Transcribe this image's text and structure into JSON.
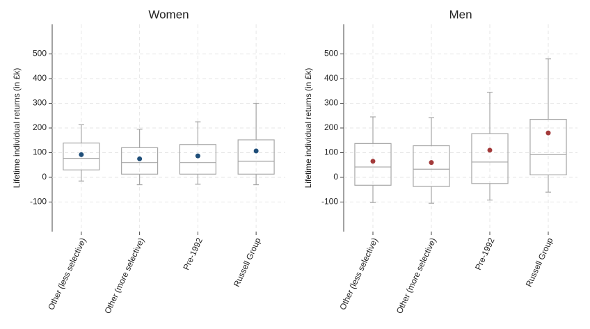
{
  "chart_data": [
    {
      "type": "box",
      "title": "Women",
      "y_label": "Lifetime individual returns (in £k)",
      "categories": [
        "Other (less selective)",
        "Other (more selective)",
        "Pre-1992",
        "Russell Group"
      ],
      "low": [
        -15,
        -30,
        -28,
        -30
      ],
      "q1": [
        30,
        13,
        13,
        13
      ],
      "median": [
        77,
        60,
        60,
        65
      ],
      "q3": [
        139,
        120,
        133,
        152
      ],
      "high": [
        213,
        195,
        225,
        300
      ],
      "mean": [
        92,
        75,
        87,
        107
      ],
      "mean_color": "#1f4e79",
      "box_color": "#a6a6a6",
      "ylim": [
        -220,
        620
      ],
      "yticks": [
        -100,
        0,
        100,
        200,
        300,
        400,
        500
      ],
      "grid": true
    },
    {
      "type": "box",
      "title": "Men",
      "y_label": "Lifetime individual returns (in £k)",
      "categories": [
        "Other (less selective)",
        "Other (more selective)",
        "Pre-1992",
        "Russell Group"
      ],
      "low": [
        -102,
        -105,
        -92,
        -60
      ],
      "q1": [
        -32,
        -37,
        -25,
        10
      ],
      "median": [
        42,
        33,
        62,
        92
      ],
      "q3": [
        137,
        128,
        177,
        235
      ],
      "high": [
        245,
        242,
        345,
        480
      ],
      "mean": [
        65,
        60,
        110,
        180
      ],
      "mean_color": "#a33a3a",
      "box_color": "#a6a6a6",
      "ylim": [
        -220,
        620
      ],
      "yticks": [
        -100,
        0,
        100,
        200,
        300,
        400,
        500
      ],
      "grid": true
    }
  ]
}
